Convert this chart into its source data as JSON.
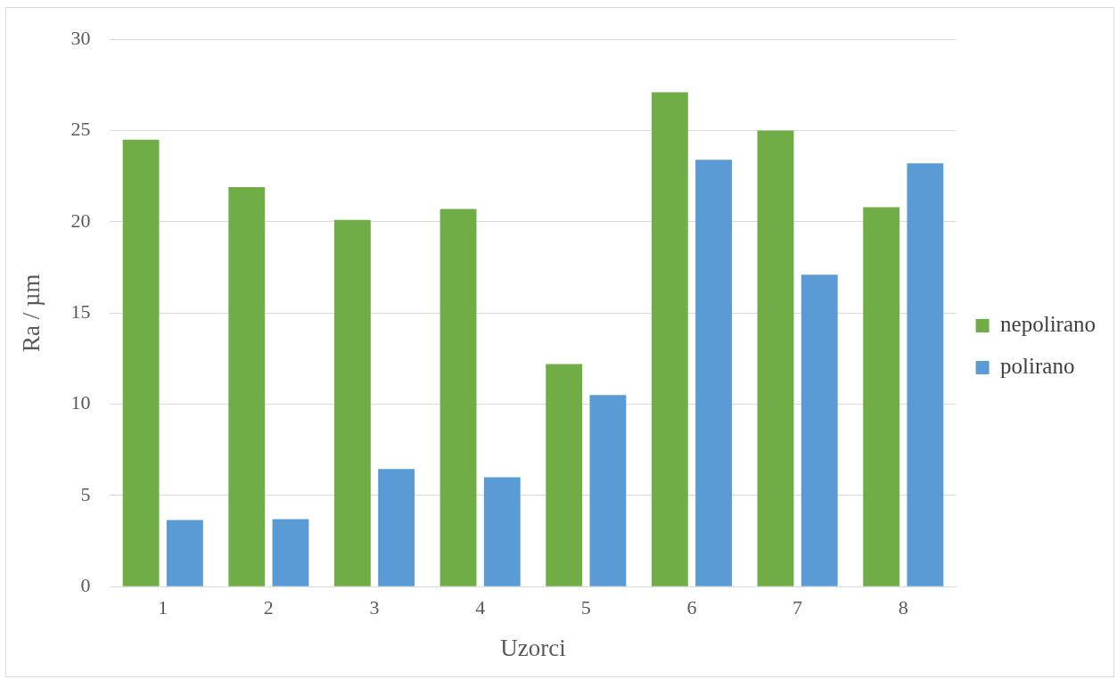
{
  "chart_data": {
    "type": "bar",
    "xlabel": "Uzorci",
    "ylabel": "Ra / µm",
    "categories": [
      "1",
      "2",
      "3",
      "4",
      "5",
      "6",
      "7",
      "8"
    ],
    "series": [
      {
        "name": "nepolirano",
        "color": "#70ad47",
        "values": [
          24.5,
          21.9,
          20.1,
          20.7,
          12.2,
          27.1,
          25.0,
          20.8
        ]
      },
      {
        "name": "polirano",
        "color": "#5b9bd5",
        "values": [
          3.65,
          3.7,
          6.45,
          6.0,
          10.5,
          23.4,
          17.1,
          23.2
        ]
      }
    ],
    "ylim": [
      0,
      30
    ],
    "yticks": [
      0,
      5,
      10,
      15,
      20,
      25,
      30
    ],
    "grid": "y",
    "legend": "right"
  }
}
